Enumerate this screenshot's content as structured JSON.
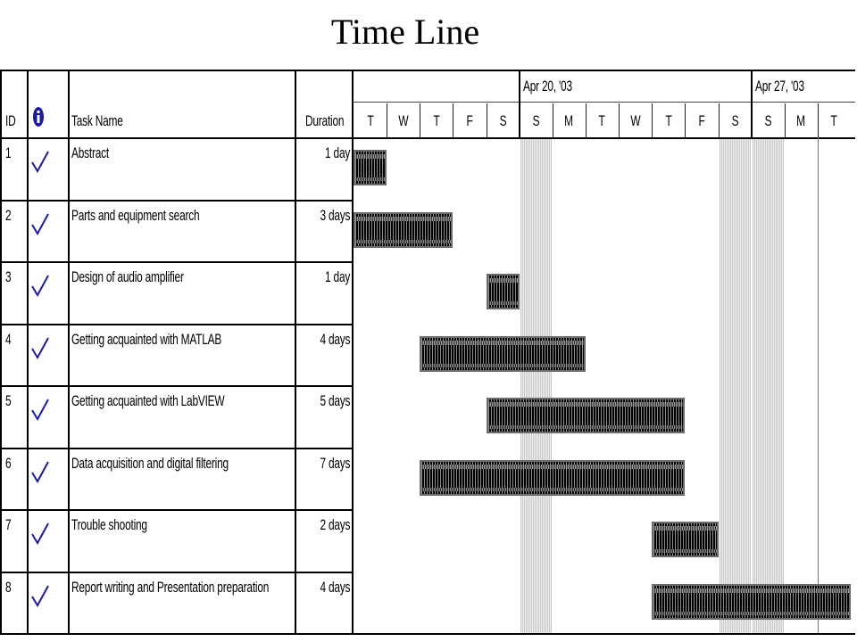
{
  "slide": {
    "title": "Time Line"
  },
  "table": {
    "columns": {
      "id": "ID",
      "task": "Task Name",
      "duration": "Duration"
    },
    "info_icon": "info-icon",
    "check_icon": "checkmark-icon"
  },
  "timescale": {
    "weeks": [
      "Apr 20, '03",
      "Apr 27, '03"
    ],
    "days": [
      "T",
      "W",
      "T",
      "F",
      "S",
      "S",
      "M",
      "T",
      "W",
      "T",
      "F",
      "S",
      "S",
      "M",
      "T"
    ],
    "weekend_days": [
      5,
      11,
      12
    ]
  },
  "chart_data": {
    "type": "gantt",
    "title": "Time Line",
    "date_range": [
      "2003-04-15",
      "2003-04-29"
    ],
    "tasks": [
      {
        "id": "1",
        "name": "Abstract",
        "duration": "1 day",
        "start": "2003-04-15",
        "end": "2003-04-15",
        "complete": true
      },
      {
        "id": "2",
        "name": "Parts and equipment search",
        "duration": "3 days",
        "start": "2003-04-15",
        "end": "2003-04-17",
        "complete": true
      },
      {
        "id": "3",
        "name": "Design of audio amplifier",
        "duration": "1 day",
        "start": "2003-04-19",
        "end": "2003-04-19",
        "complete": true
      },
      {
        "id": "4",
        "name": "Getting acquainted with MATLAB",
        "duration": "4 days",
        "start": "2003-04-17",
        "end": "2003-04-21",
        "complete": true
      },
      {
        "id": "5",
        "name": "Getting acquainted with LabVIEW",
        "duration": "5 days",
        "start": "2003-04-19",
        "end": "2003-04-24",
        "complete": true
      },
      {
        "id": "6",
        "name": "Data acquisition and digital filtering",
        "duration": "7 days",
        "start": "2003-04-17",
        "end": "2003-04-24",
        "complete": true
      },
      {
        "id": "7",
        "name": "Trouble shooting",
        "duration": "2 days",
        "start": "2003-04-24",
        "end": "2003-04-25",
        "complete": true
      },
      {
        "id": "8",
        "name": "Report writing and Presentation preparation",
        "duration": "4 days",
        "start": "2003-04-24",
        "end": "2003-04-29",
        "complete": true
      }
    ],
    "bar_color": "#000000",
    "weekend_shading_color": "#d9d9d9"
  }
}
